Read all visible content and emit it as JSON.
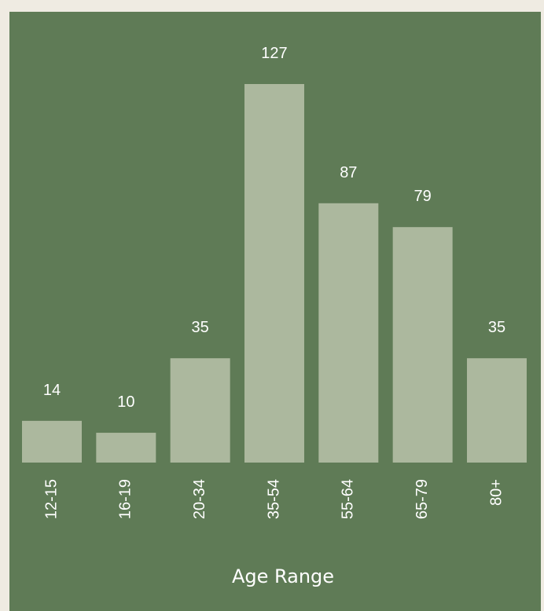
{
  "chart_data": {
    "type": "bar",
    "categories": [
      "12-15",
      "16-19",
      "20-34",
      "35-54",
      "55-64",
      "65-79",
      "80+"
    ],
    "values": [
      14,
      10,
      35,
      127,
      87,
      79,
      35
    ],
    "color": "#acb89e",
    "x_label": "Age Range"
  }
}
